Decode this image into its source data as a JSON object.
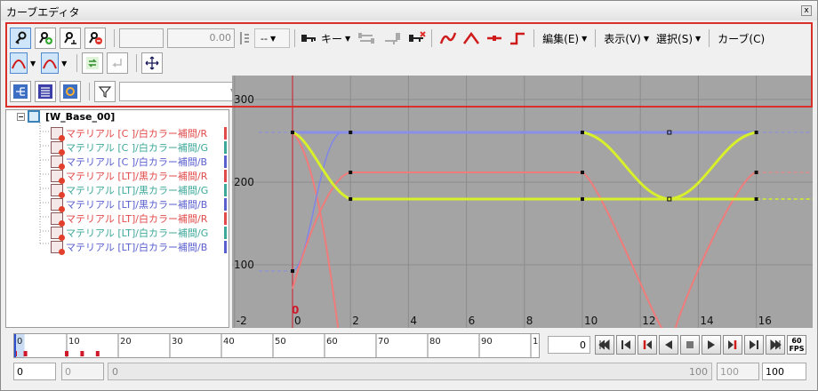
{
  "window": {
    "title": "カーブエディタ",
    "close_glyph": "x"
  },
  "toolbar": {
    "value_field": "",
    "number_field": "0.00",
    "mini_combo": "--",
    "key_label": "キー",
    "menus": [
      "編集(E)",
      "表示(V)",
      "選択(S)",
      "カーブ(C)"
    ]
  },
  "filter": {
    "value": ""
  },
  "tree": {
    "root": "[W_Base_00]",
    "items": [
      {
        "label": "マテリアル [C ]/白カラー補間/R",
        "color": "#e34b4b"
      },
      {
        "label": "マテリアル [C ]/白カラー補間/G",
        "color": "#3da89a"
      },
      {
        "label": "マテリアル [C ]/白カラー補間/B",
        "color": "#5a5fcf"
      },
      {
        "label": "マテリアル [LT]/黒カラー補間/R",
        "color": "#e34b4b"
      },
      {
        "label": "マテリアル [LT]/黒カラー補間/G",
        "color": "#3da89a"
      },
      {
        "label": "マテリアル [LT]/黒カラー補間/B",
        "color": "#5a5fcf"
      },
      {
        "label": "マテリアル [LT]/白カラー補間/R",
        "color": "#e34b4b"
      },
      {
        "label": "マテリアル [LT]/白カラー補間/G",
        "color": "#3da89a"
      },
      {
        "label": "マテリアル [LT]/白カラー補間/B",
        "color": "#5a5fcf"
      }
    ]
  },
  "graph": {
    "y_labels": [
      "300",
      "200",
      "100"
    ],
    "x_labels": [
      "-2",
      "0",
      "2",
      "4",
      "6",
      "8",
      "10",
      "12",
      "14",
      "16"
    ],
    "current_frame_label": "0"
  },
  "timeline": {
    "labels": [
      "0",
      "10",
      "20",
      "30",
      "40",
      "50",
      "60",
      "70",
      "80",
      "90",
      "1"
    ]
  },
  "playback": {
    "frame": "0",
    "fps_top": "60",
    "fps_bottom": "FPS"
  },
  "bottom": {
    "start": "0",
    "start_grey": "0",
    "scroll_left": "0",
    "scroll_right": "100",
    "end_grey": "100",
    "end": "100"
  }
}
